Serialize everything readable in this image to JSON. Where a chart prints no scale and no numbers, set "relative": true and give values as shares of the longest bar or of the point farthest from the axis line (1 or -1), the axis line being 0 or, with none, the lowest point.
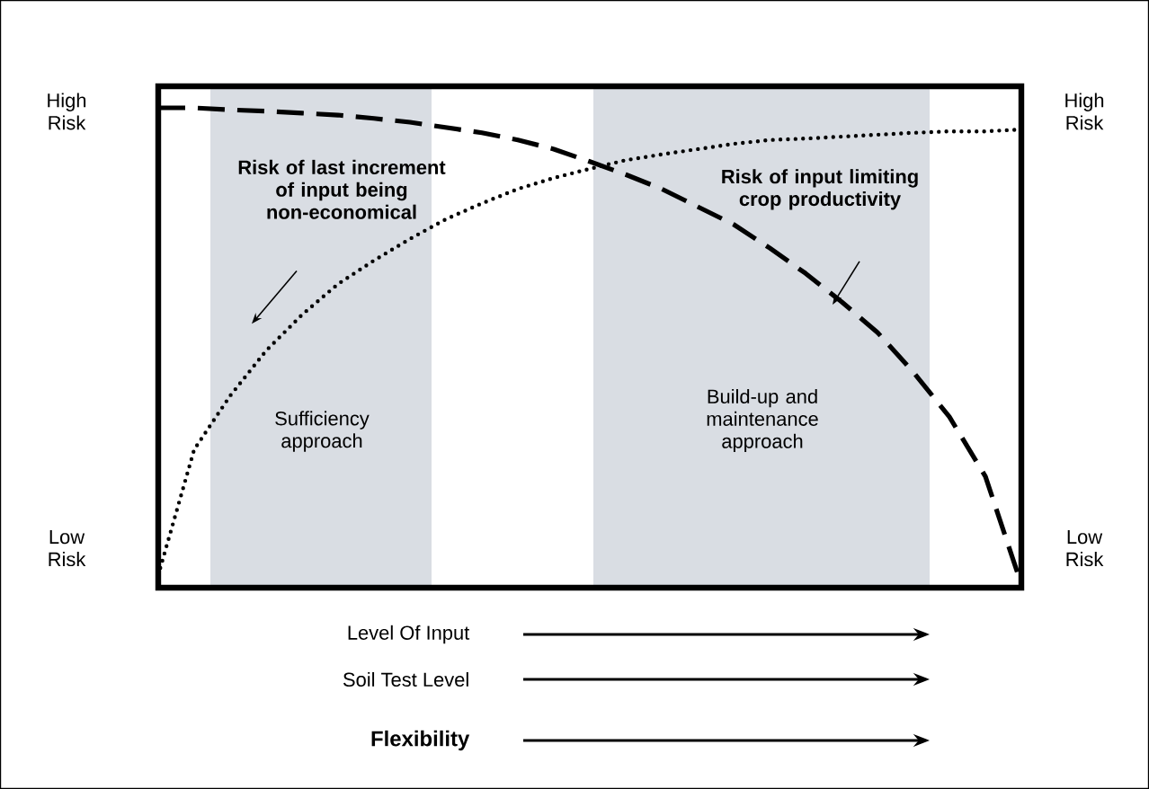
{
  "chart_data": {
    "type": "line",
    "relative": true,
    "legend": false,
    "categories": [
      null,
      null,
      null,
      null,
      null,
      null,
      null,
      null,
      null,
      null,
      null,
      null,
      null,
      null,
      null,
      null,
      null,
      null,
      null,
      null,
      null,
      null,
      null,
      null,
      null
    ],
    "series": [
      {
        "name": "Risk of last increment of input being non-economical",
        "color": "#000000",
        "line_style": "dotted",
        "values": [
          0.026,
          0.288,
          0.4,
          0.494,
          0.569,
          0.633,
          0.682,
          0.727,
          0.768,
          0.801,
          0.831,
          0.854,
          0.873,
          0.891,
          0.903,
          0.914,
          0.925,
          0.933,
          0.936,
          0.94,
          0.944,
          0.948,
          0.951,
          0.951,
          0.955
        ]
      },
      {
        "name": "Risk of input limiting crop productivity",
        "color": "#000000",
        "line_style": "dashed",
        "values": [
          1.0,
          1.0,
          0.996,
          0.993,
          0.989,
          0.985,
          0.978,
          0.97,
          0.959,
          0.948,
          0.933,
          0.914,
          0.888,
          0.861,
          0.831,
          0.794,
          0.757,
          0.708,
          0.655,
          0.596,
          0.532,
          0.449,
          0.356,
          0.232,
          0.007
        ]
      }
    ],
    "annotations": [
      "High Risk",
      "Low Risk",
      "High Risk",
      "Low Risk",
      "Level Of Input",
      "Soil Test Level",
      "Flexibility",
      "Sufficiency approach",
      "Build-up and maintenance approach"
    ]
  }
}
